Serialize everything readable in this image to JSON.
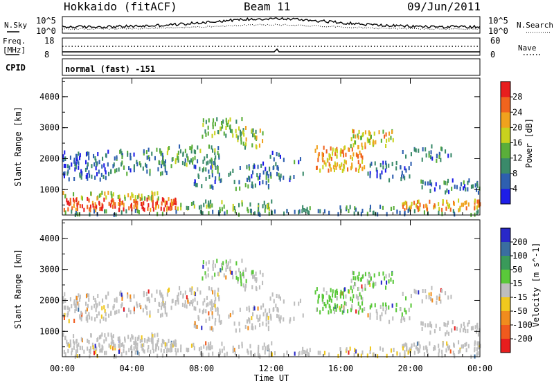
{
  "header": {
    "station": "Hokkaido (fitACF)",
    "beam": "Beam 11",
    "date": "09/Jun/2011"
  },
  "nsky_panel": {
    "left_label": "N.Sky",
    "right_label": "N.Search",
    "left_ticks": [
      "10^5",
      "10^0"
    ],
    "right_ticks": [
      "10^5",
      "10^0"
    ]
  },
  "freq_panel": {
    "left_label_1": "Freq.",
    "left_label_2": "[MHz]",
    "right_label": "Nave",
    "left_ticks": [
      "18",
      "8"
    ],
    "right_ticks": [
      "60",
      "0"
    ]
  },
  "cpid_panel": {
    "label": "CPID",
    "value": "normal (fast) -151"
  },
  "time_axis": {
    "label": "Time UT",
    "ticks": [
      "00:00",
      "04:00",
      "08:00",
      "12:00",
      "16:00",
      "20:00",
      "00:00"
    ]
  },
  "chart_data": [
    {
      "type": "heatmap",
      "title": "",
      "xlabel": "Time UT",
      "ylabel": "Slant Range [km]",
      "y_ticks": [
        "1000",
        "2000",
        "3000",
        "4000"
      ],
      "ylim": [
        180,
        4600
      ],
      "xlim_hours": [
        0,
        24
      ],
      "colorbar": {
        "label": "Power [dB]",
        "ticks": [
          "4",
          "8",
          "12",
          "16",
          "20",
          "24",
          "28"
        ],
        "range": [
          0,
          32
        ],
        "colors": [
          "#1e1ee8",
          "#2e5fb0",
          "#3a8a6a",
          "#5aae3a",
          "#c8d21e",
          "#f0a21e",
          "#f0641e",
          "#e81e1e"
        ]
      }
    },
    {
      "type": "heatmap",
      "title": "",
      "xlabel": "Time UT",
      "ylabel": "Slant Range [km]",
      "y_ticks": [
        "1000",
        "2000",
        "3000",
        "4000"
      ],
      "ylim": [
        180,
        4600
      ],
      "xlim_hours": [
        0,
        24
      ],
      "colorbar": {
        "label": "Velocity [m s^-1]",
        "ticks": [
          "200",
          "100",
          "50",
          "15",
          "-15",
          "-50",
          "-100",
          "-200"
        ],
        "colors": [
          "#2828c8",
          "#3a6ea0",
          "#3a9a5a",
          "#5ac83a",
          "#bebebe",
          "#f0c81e",
          "#f08c1e",
          "#f05a1e",
          "#e81e1e"
        ]
      }
    }
  ]
}
